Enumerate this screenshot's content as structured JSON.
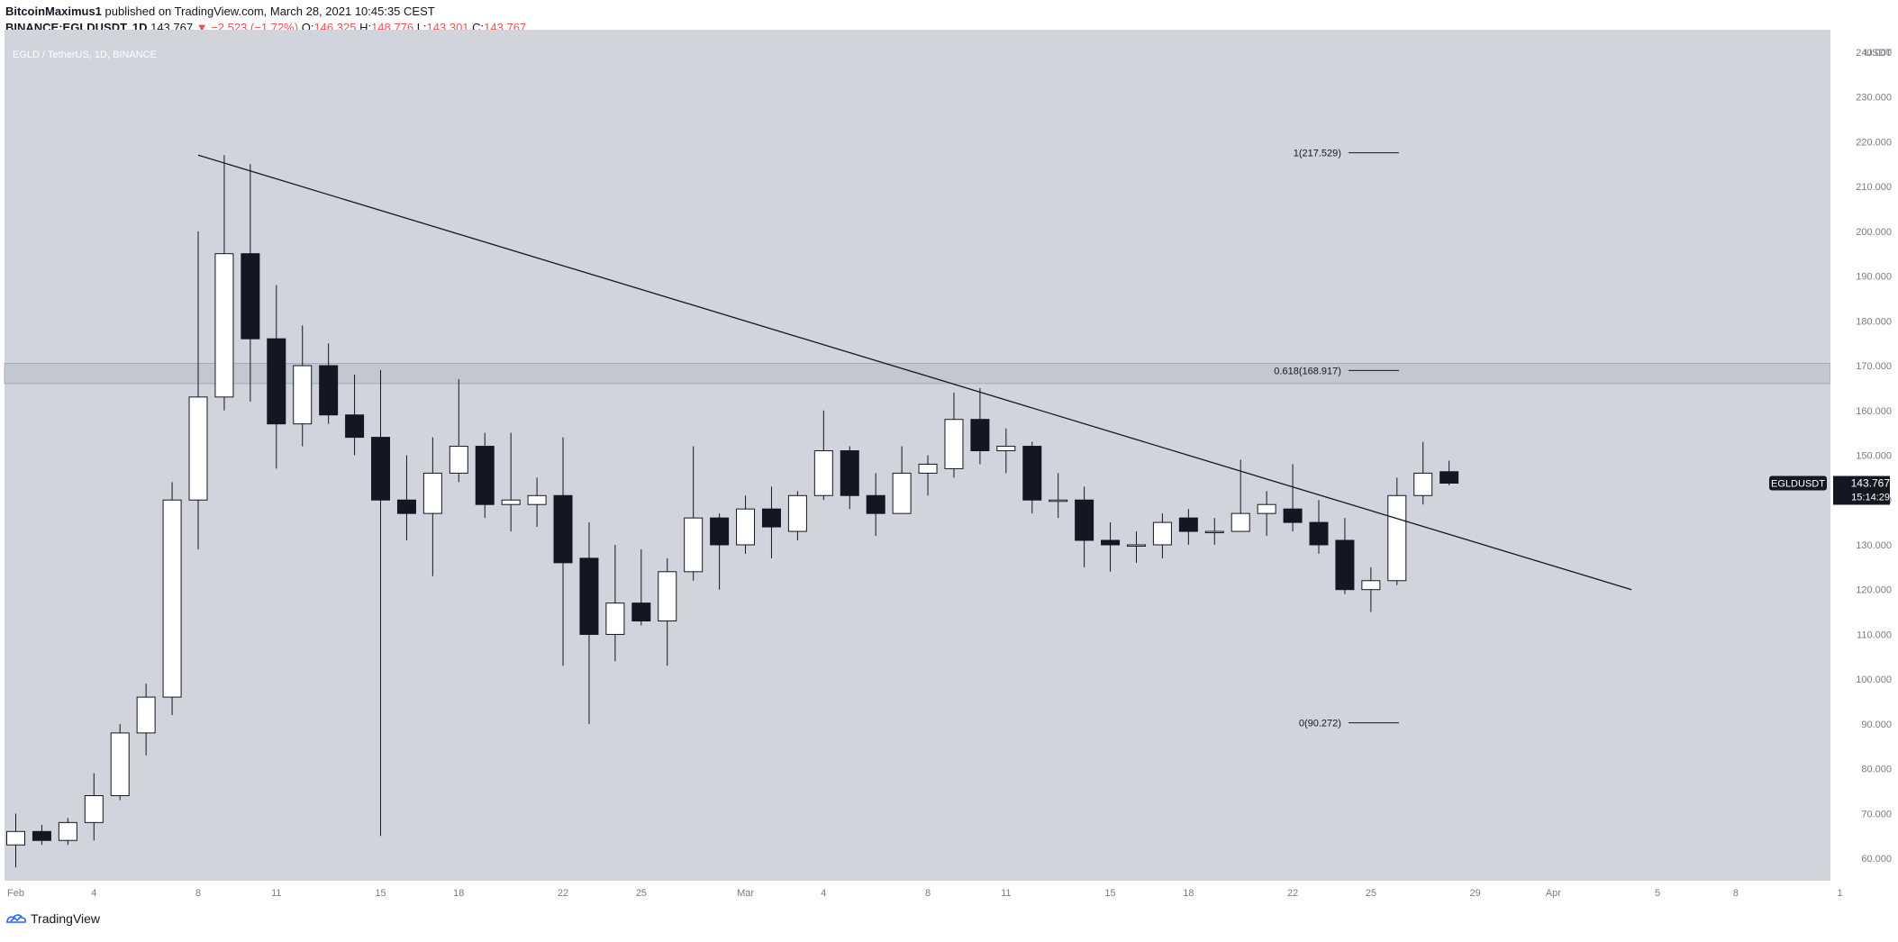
{
  "header": {
    "author": "BitcoinMaximus1",
    "published_text": "published on TradingView.com, March 28, 2021 10:45:35 CEST",
    "symbol": "BINANCE:EGLDUSDT, 1D",
    "last": "143.767",
    "change": "−2.523 (−1.72%)",
    "o_label": "O:",
    "o_value": "146.325",
    "h_label": "H:",
    "h_value": "148.776",
    "l_label": "L:",
    "l_value": "143.301",
    "c_label": "C:",
    "c_value": "143.767"
  },
  "footer": {
    "brand": "TradingView"
  },
  "colors": {
    "background": "#d1d4dc",
    "up": "#ffffff",
    "down": "#131722",
    "accent_red": "#ef5350"
  },
  "chart_data": {
    "type": "candlestick",
    "title": "EGLD / TetherUS, 1D, BINANCE",
    "ylabel": "USDT",
    "ylim": [
      55,
      245
    ],
    "y_ticks": [
      60,
      70,
      80,
      90,
      100,
      110,
      120,
      130,
      140,
      150,
      160,
      170,
      180,
      190,
      200,
      210,
      220,
      230,
      240
    ],
    "x_ticks": [
      {
        "day": 1,
        "label": "Feb"
      },
      {
        "day": 4,
        "label": "4"
      },
      {
        "day": 8,
        "label": "8"
      },
      {
        "day": 11,
        "label": "11"
      },
      {
        "day": 15,
        "label": "15"
      },
      {
        "day": 18,
        "label": "18"
      },
      {
        "day": 22,
        "label": "22"
      },
      {
        "day": 25,
        "label": "25"
      },
      {
        "day": 29,
        "label": "Mar"
      },
      {
        "day": 32,
        "label": "4"
      },
      {
        "day": 36,
        "label": "8"
      },
      {
        "day": 39,
        "label": "11"
      },
      {
        "day": 43,
        "label": "15"
      },
      {
        "day": 46,
        "label": "18"
      },
      {
        "day": 50,
        "label": "22"
      },
      {
        "day": 53,
        "label": "25"
      },
      {
        "day": 57,
        "label": "29"
      },
      {
        "day": 60,
        "label": "Apr"
      },
      {
        "day": 64,
        "label": "5"
      },
      {
        "day": 67,
        "label": "8"
      },
      {
        "day": 71,
        "label": "1"
      }
    ],
    "candles": [
      {
        "date": "Feb 1",
        "o": 63,
        "h": 70,
        "l": 58,
        "c": 66
      },
      {
        "date": "Feb 2",
        "o": 66,
        "h": 67.5,
        "l": 63,
        "c": 64
      },
      {
        "date": "Feb 3",
        "o": 64,
        "h": 69,
        "l": 63,
        "c": 68
      },
      {
        "date": "Feb 4",
        "o": 68,
        "h": 79,
        "l": 64,
        "c": 74
      },
      {
        "date": "Feb 5",
        "o": 74,
        "h": 90,
        "l": 73,
        "c": 88
      },
      {
        "date": "Feb 6",
        "o": 88,
        "h": 99,
        "l": 83,
        "c": 96
      },
      {
        "date": "Feb 7",
        "o": 96,
        "h": 144,
        "l": 92,
        "c": 140
      },
      {
        "date": "Feb 8",
        "o": 140,
        "h": 200,
        "l": 129,
        "c": 163
      },
      {
        "date": "Feb 9",
        "o": 163,
        "h": 217,
        "l": 160,
        "c": 195
      },
      {
        "date": "Feb 10",
        "o": 195,
        "h": 215,
        "l": 162,
        "c": 176
      },
      {
        "date": "Feb 11",
        "o": 176,
        "h": 188,
        "l": 147,
        "c": 157
      },
      {
        "date": "Feb 12",
        "o": 157,
        "h": 179,
        "l": 152,
        "c": 170
      },
      {
        "date": "Feb 13",
        "o": 170,
        "h": 175,
        "l": 157,
        "c": 159
      },
      {
        "date": "Feb 14",
        "o": 159,
        "h": 168,
        "l": 150,
        "c": 154
      },
      {
        "date": "Feb 15",
        "o": 154,
        "h": 169,
        "l": 65,
        "c": 140
      },
      {
        "date": "Feb 16",
        "o": 140,
        "h": 150,
        "l": 131,
        "c": 137
      },
      {
        "date": "Feb 17",
        "o": 137,
        "h": 154,
        "l": 123,
        "c": 146
      },
      {
        "date": "Feb 18",
        "o": 146,
        "h": 167,
        "l": 144,
        "c": 152
      },
      {
        "date": "Feb 19",
        "o": 152,
        "h": 155,
        "l": 136,
        "c": 139
      },
      {
        "date": "Feb 20",
        "o": 139,
        "h": 155,
        "l": 133,
        "c": 140
      },
      {
        "date": "Feb 21",
        "o": 139,
        "h": 145,
        "l": 134,
        "c": 141
      },
      {
        "date": "Feb 22",
        "o": 141,
        "h": 154,
        "l": 103,
        "c": 126
      },
      {
        "date": "Feb 23",
        "o": 127,
        "h": 135,
        "l": 90,
        "c": 110
      },
      {
        "date": "Feb 24",
        "o": 110,
        "h": 130,
        "l": 104,
        "c": 117
      },
      {
        "date": "Feb 25",
        "o": 117,
        "h": 129,
        "l": 112,
        "c": 113
      },
      {
        "date": "Feb 26",
        "o": 113,
        "h": 127,
        "l": 103,
        "c": 124
      },
      {
        "date": "Feb 27",
        "o": 124,
        "h": 152,
        "l": 122,
        "c": 136
      },
      {
        "date": "Feb 28",
        "o": 136,
        "h": 137,
        "l": 120,
        "c": 130
      },
      {
        "date": "Mar 1",
        "o": 130,
        "h": 141,
        "l": 128,
        "c": 138
      },
      {
        "date": "Mar 2",
        "o": 138,
        "h": 143,
        "l": 127,
        "c": 134
      },
      {
        "date": "Mar 3",
        "o": 133,
        "h": 142,
        "l": 131,
        "c": 141
      },
      {
        "date": "Mar 4",
        "o": 141,
        "h": 160,
        "l": 140,
        "c": 151
      },
      {
        "date": "Mar 5",
        "o": 151,
        "h": 152,
        "l": 138,
        "c": 141
      },
      {
        "date": "Mar 6",
        "o": 141,
        "h": 146,
        "l": 132,
        "c": 137
      },
      {
        "date": "Mar 7",
        "o": 137,
        "h": 152,
        "l": 137,
        "c": 146
      },
      {
        "date": "Mar 8",
        "o": 146,
        "h": 150,
        "l": 141,
        "c": 148
      },
      {
        "date": "Mar 9",
        "o": 147,
        "h": 164,
        "l": 145,
        "c": 158
      },
      {
        "date": "Mar 10",
        "o": 158,
        "h": 165,
        "l": 148,
        "c": 151
      },
      {
        "date": "Mar 11",
        "o": 151,
        "h": 156,
        "l": 146,
        "c": 152
      },
      {
        "date": "Mar 12",
        "o": 152,
        "h": 153,
        "l": 137,
        "c": 140
      },
      {
        "date": "Mar 13",
        "o": 140,
        "h": 146,
        "l": 136,
        "c": 140
      },
      {
        "date": "Mar 14",
        "o": 140,
        "h": 143,
        "l": 125,
        "c": 131
      },
      {
        "date": "Mar 15",
        "o": 131,
        "h": 135,
        "l": 124,
        "c": 130
      },
      {
        "date": "Mar 16",
        "o": 130,
        "h": 133,
        "l": 126,
        "c": 130
      },
      {
        "date": "Mar 17",
        "o": 130,
        "h": 137,
        "l": 127,
        "c": 135
      },
      {
        "date": "Mar 18",
        "o": 136,
        "h": 138,
        "l": 130,
        "c": 133
      },
      {
        "date": "Mar 19",
        "o": 133,
        "h": 136,
        "l": 130,
        "c": 133
      },
      {
        "date": "Mar 20",
        "o": 133,
        "h": 149,
        "l": 133,
        "c": 137
      },
      {
        "date": "Mar 21",
        "o": 137,
        "h": 142,
        "l": 132,
        "c": 139
      },
      {
        "date": "Mar 22",
        "o": 138,
        "h": 148,
        "l": 133,
        "c": 135
      },
      {
        "date": "Mar 23",
        "o": 135,
        "h": 140,
        "l": 128,
        "c": 130
      },
      {
        "date": "Mar 24",
        "o": 131,
        "h": 136,
        "l": 119,
        "c": 120
      },
      {
        "date": "Mar 25",
        "o": 120,
        "h": 125,
        "l": 115,
        "c": 122
      },
      {
        "date": "Mar 26",
        "o": 122,
        "h": 145,
        "l": 121,
        "c": 141
      },
      {
        "date": "Mar 27",
        "o": 141,
        "h": 153,
        "l": 139,
        "c": 146
      },
      {
        "date": "Mar 28",
        "o": 146.325,
        "h": 148.776,
        "l": 143.301,
        "c": 143.767
      }
    ],
    "trendline": {
      "from": {
        "day": 8,
        "price": 217
      },
      "to": {
        "day": 63,
        "price": 120
      }
    },
    "fib_levels": [
      {
        "label": "1(217.529)",
        "price": 217.529
      },
      {
        "label": "0.618(168.917)",
        "price": 168.917
      },
      {
        "label": "0(90.272)",
        "price": 90.272
      }
    ],
    "fib_label_day": 52,
    "resistance_zone": [
      166,
      170.5
    ],
    "price_tag": {
      "symbol": "EGLDUSDT",
      "price": "143.767",
      "countdown": "15:14:29",
      "value": 143.767
    }
  }
}
